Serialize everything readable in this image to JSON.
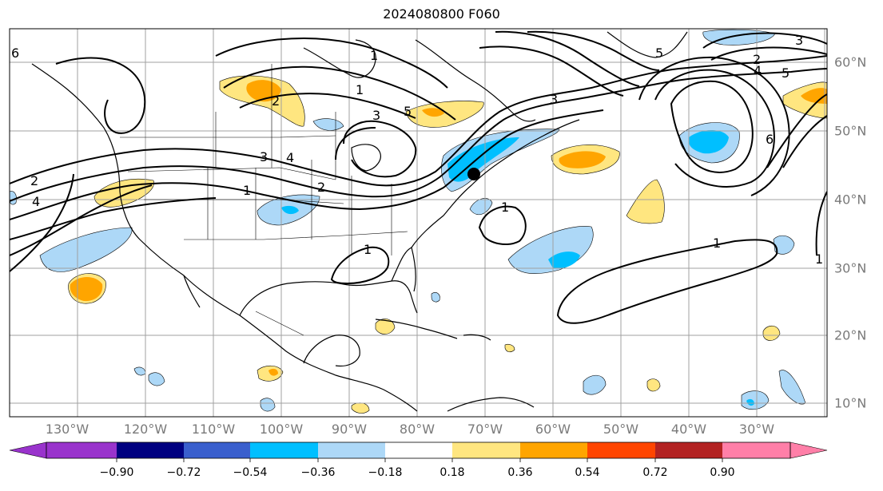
{
  "title": "2024080800 F060",
  "lon_labels": [
    "130°W",
    "120°W",
    "110°W",
    "100°W",
    "90°W",
    "80°W",
    "70°W",
    "60°W",
    "50°W",
    "40°W",
    "30°W"
  ],
  "lat_labels": [
    "60°N",
    "50°N",
    "40°N",
    "30°N",
    "20°N",
    "10°N"
  ],
  "colorbar": {
    "ticks": [
      "−0.90",
      "−0.72",
      "−0.54",
      "−0.36",
      "−0.18",
      "0.18",
      "0.36",
      "0.54",
      "0.72",
      "0.90"
    ],
    "colors": [
      "#9933cc",
      "#000080",
      "#3a5fcd",
      "#00bfff",
      "#add8f7",
      "#ffffff",
      "#ffe680",
      "#ffa500",
      "#ff4500",
      "#b22222",
      "#ff7fa8"
    ]
  },
  "contour_labels": [
    "1",
    "1",
    "1",
    "1",
    "1",
    "1",
    "1",
    "2",
    "2",
    "2",
    "2",
    "3",
    "3",
    "3",
    "3",
    "4",
    "4",
    "4",
    "5",
    "5",
    "5",
    "6",
    "6"
  ],
  "marker": "black-dot",
  "colors": {
    "warm_fill": "#ffe680",
    "hot_fill": "#ffa500",
    "cool_fill": "#add8f7",
    "cold_fill": "#00bfff",
    "grid": "#a0a0a0",
    "contour": "#000000"
  }
}
